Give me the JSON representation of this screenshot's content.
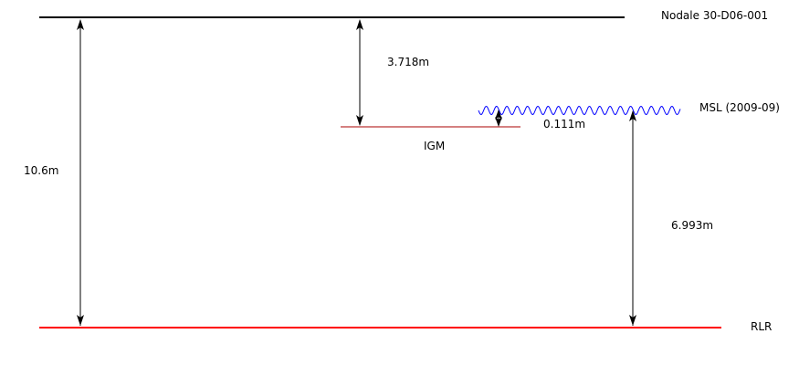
{
  "levels": {
    "benchmark": {
      "label": "Nodale 30-D06-001",
      "color": "#000000"
    },
    "igm": {
      "label": "IGM",
      "color": "#aa0000"
    },
    "msl": {
      "label": "MSL (2009-09)",
      "color": "#0000ff"
    },
    "rlr": {
      "label": "RLR",
      "color": "#ff0000"
    }
  },
  "distances": {
    "benchmark_to_rlr": "10.6m",
    "benchmark_to_igm": "3.718m",
    "igm_to_msl": "0.111m",
    "msl_to_rlr": "6.993m"
  },
  "colors": {
    "arrow": "#000000",
    "text": "#000000"
  }
}
